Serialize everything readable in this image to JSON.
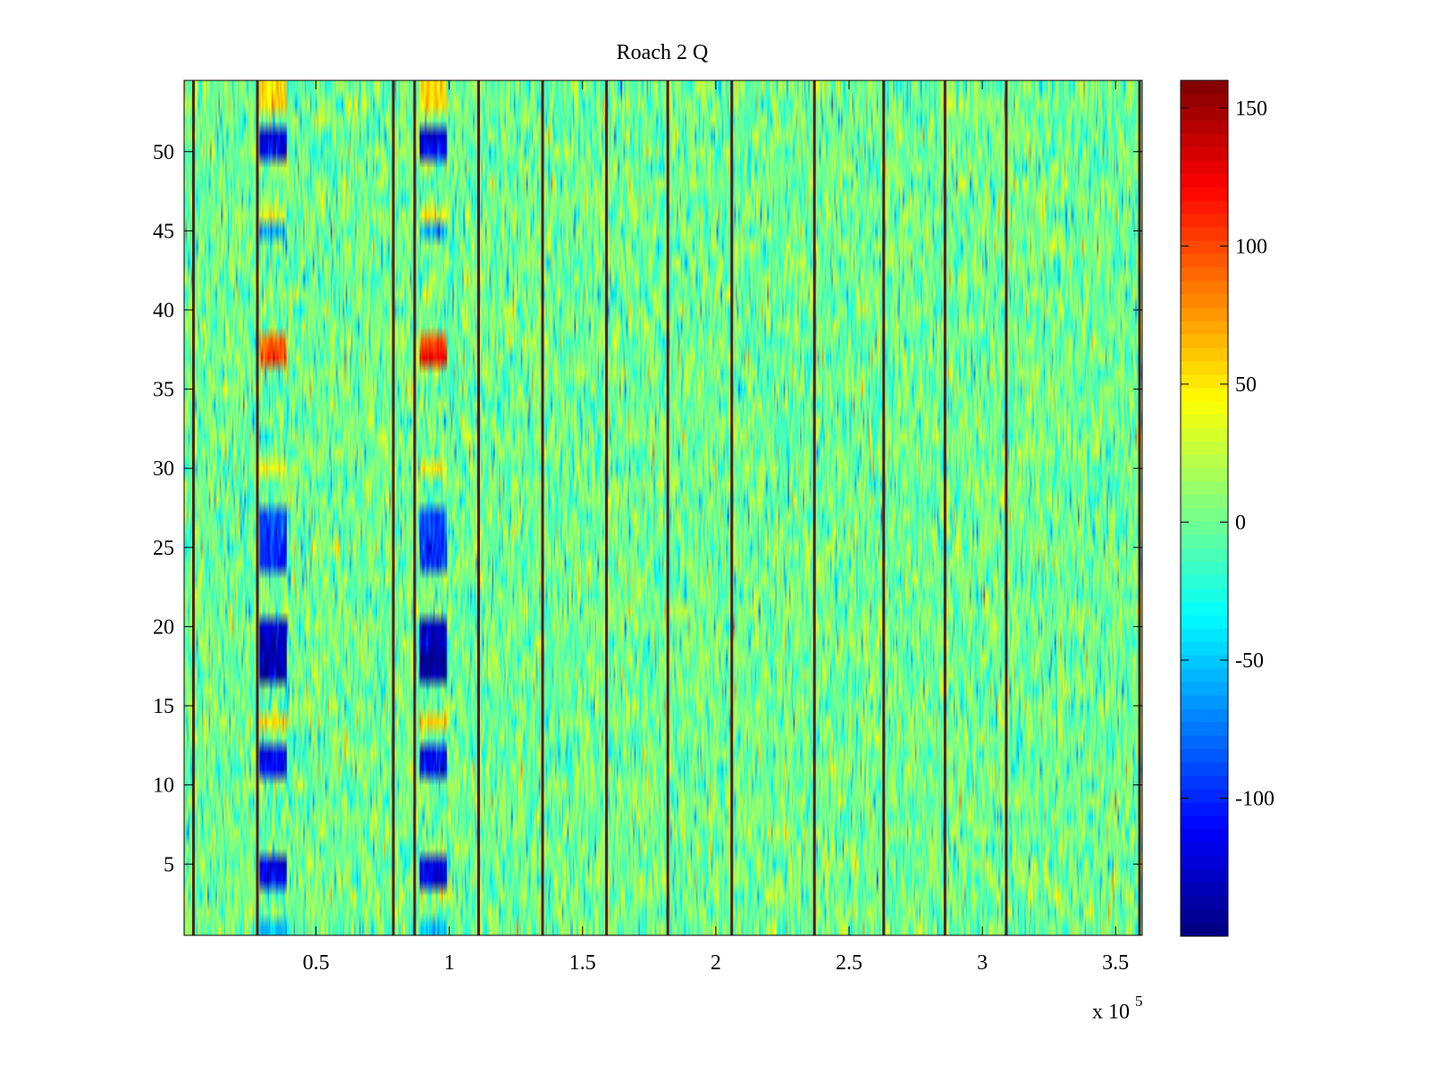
{
  "chart_data": {
    "type": "heatmap",
    "title": "Roach 2 Q",
    "xlabel": "",
    "ylabel": "",
    "x_exponent_label": "x 10",
    "x_exponent": "5",
    "xlim": [
      0.005,
      3.6
    ],
    "ylim": [
      0.5,
      54.5
    ],
    "rows": 54,
    "x_ticks": [
      {
        "value": 0.5,
        "label": "0.5"
      },
      {
        "value": 1,
        "label": "1"
      },
      {
        "value": 1.5,
        "label": "1.5"
      },
      {
        "value": 2,
        "label": "2"
      },
      {
        "value": 2.5,
        "label": "2.5"
      },
      {
        "value": 3,
        "label": "3"
      },
      {
        "value": 3.5,
        "label": "3.5"
      }
    ],
    "y_ticks": [
      {
        "value": 5,
        "label": "5"
      },
      {
        "value": 10,
        "label": "10"
      },
      {
        "value": 15,
        "label": "15"
      },
      {
        "value": 20,
        "label": "20"
      },
      {
        "value": 25,
        "label": "25"
      },
      {
        "value": 30,
        "label": "30"
      },
      {
        "value": 35,
        "label": "35"
      },
      {
        "value": 40,
        "label": "40"
      },
      {
        "value": 45,
        "label": "45"
      },
      {
        "value": 50,
        "label": "50"
      }
    ],
    "colorbar": {
      "colormap": "jet",
      "clim": [
        -150,
        160
      ],
      "ticks": [
        {
          "value": 150,
          "label": "150"
        },
        {
          "value": 100,
          "label": "100"
        },
        {
          "value": 50,
          "label": "50"
        },
        {
          "value": 0,
          "label": "0"
        },
        {
          "value": -50,
          "label": "-50"
        },
        {
          "value": -100,
          "label": "-100"
        }
      ]
    },
    "background_noise": {
      "mean": 0,
      "spread": 25
    },
    "column_lines": [
      0.04,
      0.28,
      0.79,
      0.87,
      1.11,
      1.35,
      1.59,
      1.82,
      2.06,
      2.37,
      2.63,
      2.86,
      3.09,
      3.59
    ],
    "bursts": [
      {
        "x_range": [
          0.29,
          0.39
        ],
        "row_values": {
          "1": -55,
          "4": -120,
          "5": -120,
          "11": -110,
          "12": -110,
          "14": 60,
          "17": -135,
          "18": -140,
          "19": -130,
          "20": -125,
          "24": -100,
          "25": -100,
          "26": -95,
          "27": -85,
          "30": 45,
          "37": 110,
          "38": 90,
          "45": -60,
          "46": 40,
          "50": -115,
          "51": -120,
          "53": 55,
          "54": 55
        }
      },
      {
        "x_range": [
          0.89,
          0.99
        ],
        "row_values": {
          "1": -55,
          "4": -120,
          "5": -120,
          "11": -110,
          "12": -110,
          "14": 60,
          "17": -140,
          "18": -145,
          "19": -135,
          "20": -130,
          "24": -100,
          "25": -100,
          "26": -95,
          "27": -85,
          "30": 45,
          "37": 120,
          "38": 95,
          "45": -60,
          "46": 40,
          "50": -115,
          "51": -125,
          "53": 55,
          "54": 55
        }
      }
    ]
  }
}
